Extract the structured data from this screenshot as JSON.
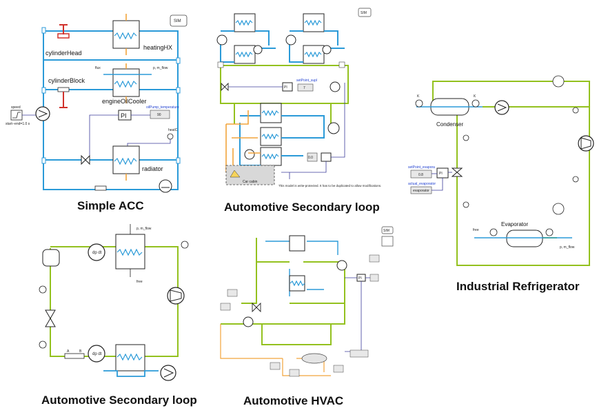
{
  "panels": {
    "simple_acc": {
      "caption": "Simple ACC",
      "sim_badge": "SIM",
      "labels": {
        "cylinder_head": "cylinderHead",
        "heating_hx": "heatingHX",
        "cylinder_block": "cylinderBlock",
        "engine_oil_cooler": "engineOilCooler",
        "radiator": "radiator",
        "speed": "speed",
        "start_end": "start--end=1.0 s",
        "pi": "PI",
        "oil_temp": "oilPump_temperature",
        "oil_temp_value": "90",
        "flux": "flux",
        "p_m_flow": "p, m_flow",
        "heat_c": "heatC"
      }
    },
    "secondary_loop_top": {
      "caption": "Automotive Secondary loop",
      "sim_badge": "SIM",
      "labels": {
        "car_cabin": "Car cabin",
        "protected_note": "This model is write-protected. It has to be duplicated to allow modifications.",
        "setpoint": "setPoint_supl",
        "pi": "PI",
        "value_7": "7",
        "value_0": "0.0"
      }
    },
    "industrial_refrigerator": {
      "caption": "Industrial Refrigerator",
      "labels": {
        "condenser": "Condenser",
        "evaporator": "Evaporator",
        "setpoint": "setPoint_evapora",
        "setpoint_value": "0.8",
        "actual": "actual_evaporator",
        "actual_value": "evaporator",
        "pi": "PI",
        "free": "free",
        "p_m_flow": "p, m_flow",
        "k": "K"
      }
    },
    "secondary_loop_bottom": {
      "caption": "Automotive Secondary loop",
      "labels": {
        "dp_dt": "dp dt",
        "free": "free",
        "p_m_flow": "p, m_flow",
        "a": "A",
        "b": "B"
      }
    },
    "automotive_hvac": {
      "caption": "Automotive HVAC",
      "sim_badge": "SIM",
      "labels": {
        "pi": "PI"
      }
    }
  }
}
